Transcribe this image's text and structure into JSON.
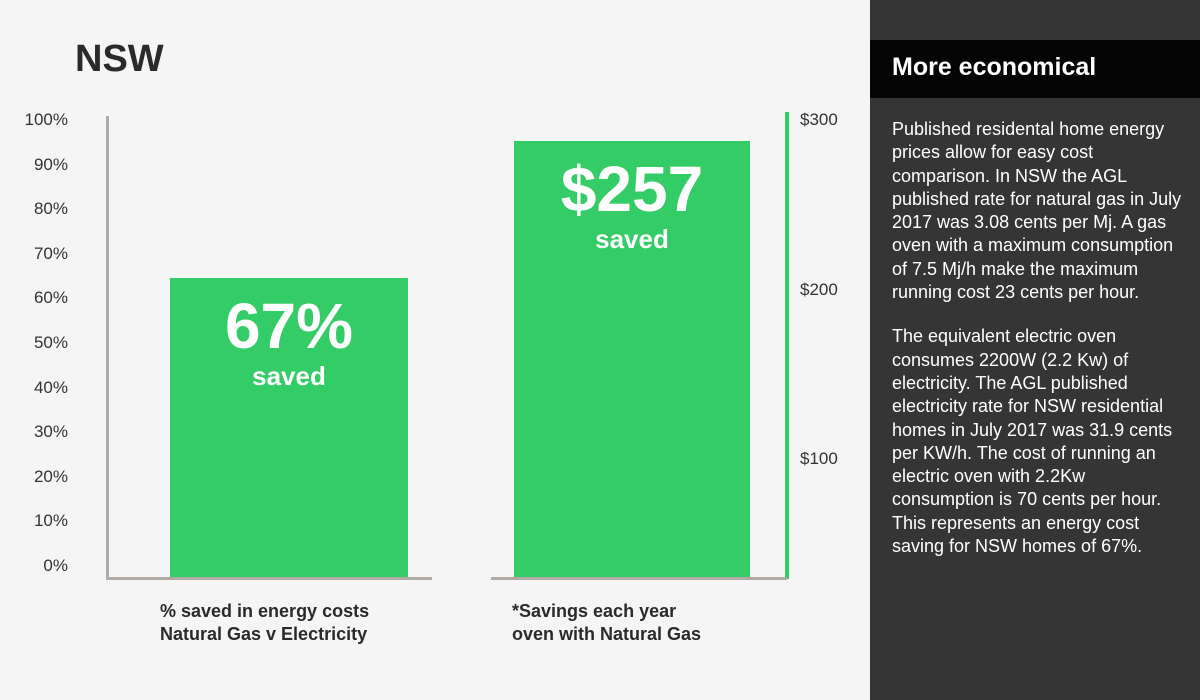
{
  "title": "NSW",
  "chart_data": [
    {
      "type": "bar",
      "categories": [
        "% saved in energy costs Natural Gas v Electricity"
      ],
      "category_lines": [
        "% saved in energy costs",
        "Natural Gas v Electricity"
      ],
      "values": [
        67
      ],
      "unit": "%",
      "ylim": [
        0,
        100
      ],
      "yticks": [
        "100%",
        "90%",
        "80%",
        "70%",
        "60%",
        "50%",
        "40%",
        "30%",
        "20%",
        "10%",
        "0%"
      ],
      "bar_label": "67%",
      "bar_sublabel": "saved",
      "color": "#33cc66"
    },
    {
      "type": "bar",
      "categories": [
        "*Savings each year oven with Natural Gas"
      ],
      "category_lines": [
        "*Savings each year",
        "oven with Natural Gas"
      ],
      "values": [
        257
      ],
      "unit": "$",
      "ylim": [
        0,
        300
      ],
      "yticks": [
        "$300",
        "$200",
        "$100"
      ],
      "bar_label": "$257",
      "bar_sublabel": "saved",
      "color": "#33cc66"
    }
  ],
  "panel": {
    "heading": "More economical",
    "paragraphs": [
      "Published residental home energy prices allow for easy cost comparison. In NSW the AGL published rate for natural gas in July 2017 was 3.08 cents per Mj. A gas oven with a maximum consumption of 7.5 Mj/h make the maximum running cost 23 cents per hour.",
      "The equivalent electric oven consumes 2200W (2.2 Kw) of electricity. The AGL published electricity rate for NSW residential homes in July 2017 was 31.9 cents per KW/h. The cost of running an electric oven with 2.2Kw consumption is 70 cents per hour. This represents an energy cost saving for NSW homes of 67%."
    ]
  }
}
